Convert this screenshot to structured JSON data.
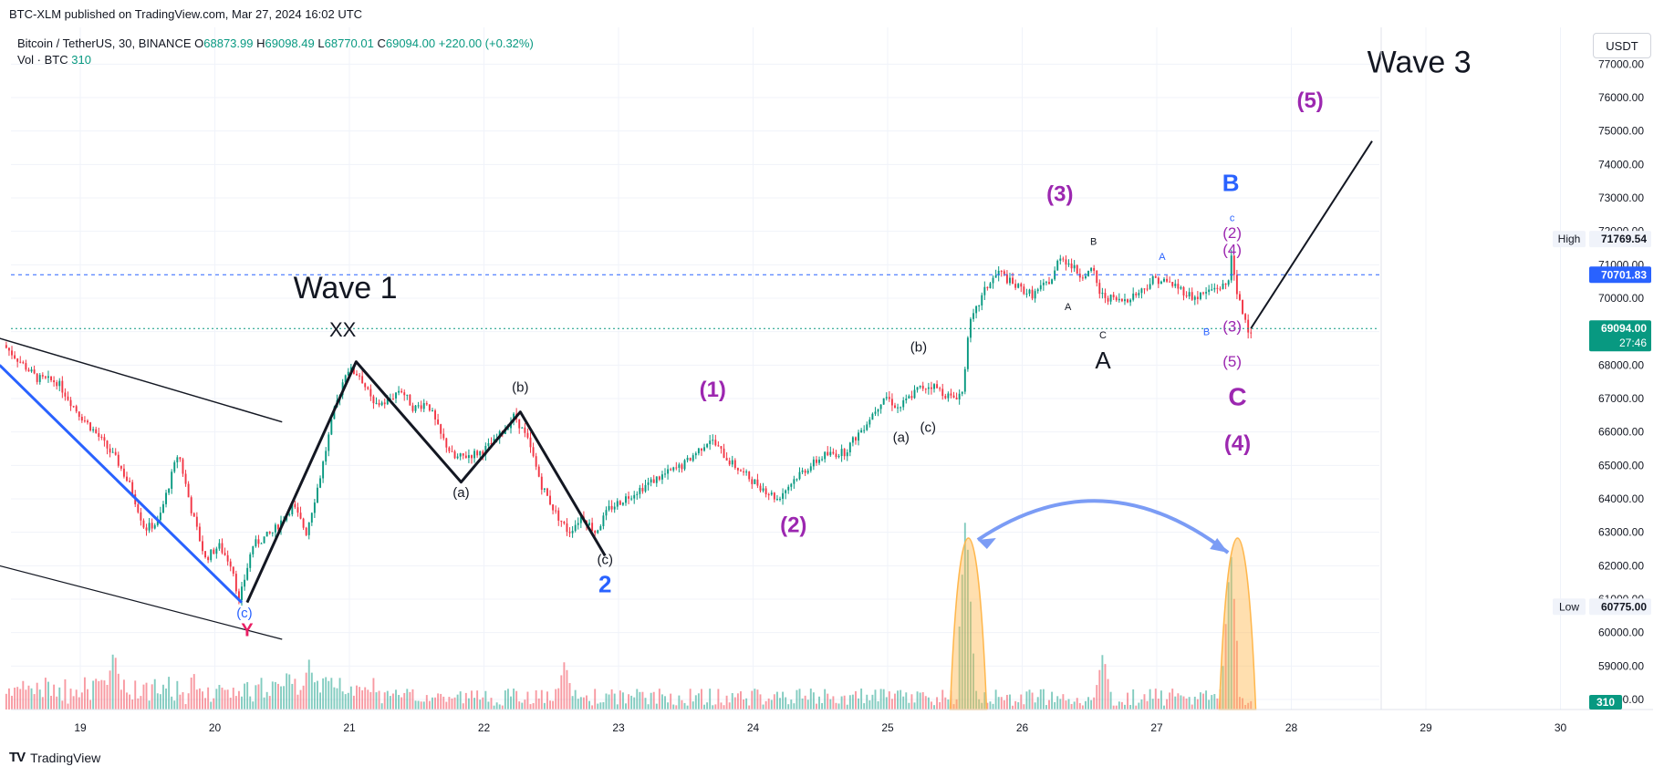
{
  "header": {
    "published": "BTC-XLM published on TradingView.com, Mar 27, 2024 16:02 UTC",
    "symbol": "Bitcoin / TetherUS, 30, BINANCE",
    "o_label": "O",
    "o_value": "68873.99",
    "h_label": "H",
    "h_value": "69098.49",
    "l_label": "L",
    "l_value": "68770.01",
    "c_label": "C",
    "c_value": "69094.00",
    "change": "+220.00 (+0.32%)",
    "vol_label": "Vol · BTC",
    "vol_value": "310",
    "currency": "USDT"
  },
  "footer": {
    "logo_text": "TradingView"
  },
  "colors": {
    "up": "#089981",
    "down": "#f23645",
    "purple": "#9c27b0",
    "blue": "#2962ff",
    "pink": "#e91e63",
    "orange_zone": "#ffb74d",
    "arrow": "#7b9cf5"
  },
  "chart_data": {
    "type": "candlestick",
    "x_ticks": [
      "19",
      "20",
      "21",
      "22",
      "23",
      "24",
      "25",
      "26",
      "27",
      "28",
      "29",
      "30"
    ],
    "y_ticks": [
      "77000.00",
      "76000.00",
      "75000.00",
      "74000.00",
      "73000.00",
      "72000.00",
      "71000.00",
      "70000.00",
      "69000.00",
      "68000.00",
      "67000.00",
      "66000.00",
      "65000.00",
      "64000.00",
      "63000.00",
      "62000.00",
      "61000.00",
      "60000.00",
      "59000.00",
      "58000.00"
    ],
    "ylim": [
      57700,
      78100
    ],
    "price_labels": [
      {
        "label": "High",
        "value": "71769.54",
        "price": 71769.54,
        "style": "plain"
      },
      {
        "label": "",
        "value": "70701.83",
        "price": 70701.83,
        "style": "blue"
      },
      {
        "label": "",
        "value": "69094.00",
        "sub": "27:46",
        "price": 69094,
        "style": "green"
      },
      {
        "label": "Low",
        "value": "60775.00",
        "price": 60775,
        "style": "plain"
      }
    ],
    "volume_label": "310",
    "price_path": [
      [
        18.45,
        68600
      ],
      [
        18.55,
        68200
      ],
      [
        18.7,
        67600
      ],
      [
        18.85,
        67500
      ],
      [
        19.0,
        66600
      ],
      [
        19.15,
        65900
      ],
      [
        19.3,
        65100
      ],
      [
        19.4,
        64300
      ],
      [
        19.5,
        63100
      ],
      [
        19.6,
        63300
      ],
      [
        19.7,
        64700
      ],
      [
        19.75,
        65400
      ],
      [
        19.85,
        63600
      ],
      [
        19.95,
        62200
      ],
      [
        20.05,
        62600
      ],
      [
        20.15,
        62000
      ],
      [
        20.2,
        60900
      ],
      [
        20.3,
        62600
      ],
      [
        20.45,
        63000
      ],
      [
        20.6,
        63800
      ],
      [
        20.7,
        63000
      ],
      [
        20.8,
        64600
      ],
      [
        20.9,
        66500
      ],
      [
        21.0,
        67900
      ],
      [
        21.1,
        67700
      ],
      [
        21.2,
        66800
      ],
      [
        21.3,
        66900
      ],
      [
        21.4,
        67300
      ],
      [
        21.5,
        66700
      ],
      [
        21.6,
        66900
      ],
      [
        21.7,
        65900
      ],
      [
        21.8,
        65200
      ],
      [
        21.9,
        65300
      ],
      [
        22.0,
        65400
      ],
      [
        22.1,
        65700
      ],
      [
        22.25,
        66500
      ],
      [
        22.35,
        65700
      ],
      [
        22.45,
        64400
      ],
      [
        22.55,
        63600
      ],
      [
        22.65,
        63000
      ],
      [
        22.75,
        63500
      ],
      [
        22.85,
        63000
      ],
      [
        22.95,
        63700
      ],
      [
        23.1,
        64100
      ],
      [
        23.3,
        64600
      ],
      [
        23.5,
        65000
      ],
      [
        23.7,
        65800
      ],
      [
        23.85,
        65100
      ],
      [
        24.0,
        64600
      ],
      [
        24.2,
        64000
      ],
      [
        24.35,
        64700
      ],
      [
        24.55,
        65300
      ],
      [
        24.7,
        65400
      ],
      [
        24.85,
        66200
      ],
      [
        25.0,
        67100
      ],
      [
        25.1,
        66700
      ],
      [
        25.25,
        67300
      ],
      [
        25.35,
        67400
      ],
      [
        25.5,
        67000
      ],
      [
        25.58,
        67200
      ],
      [
        25.62,
        69100
      ],
      [
        25.75,
        70300
      ],
      [
        25.85,
        70800
      ],
      [
        25.95,
        70400
      ],
      [
        26.1,
        70100
      ],
      [
        26.25,
        70600
      ],
      [
        26.3,
        71300
      ],
      [
        26.45,
        70700
      ],
      [
        26.55,
        70800
      ],
      [
        26.6,
        70100
      ],
      [
        26.75,
        69900
      ],
      [
        26.9,
        70200
      ],
      [
        27.0,
        70600
      ],
      [
        27.15,
        70400
      ],
      [
        27.3,
        70000
      ],
      [
        27.45,
        70300
      ],
      [
        27.55,
        70400
      ],
      [
        27.58,
        71600
      ],
      [
        27.6,
        70300
      ],
      [
        27.65,
        69700
      ],
      [
        27.7,
        69094
      ]
    ],
    "volume_spikes": [
      [
        19.25,
        160
      ],
      [
        20.7,
        130
      ],
      [
        22.6,
        130
      ],
      [
        25.58,
        520
      ],
      [
        26.6,
        150
      ],
      [
        27.55,
        420
      ]
    ],
    "waves": [
      {
        "id": "wave1-label",
        "text": "Wave 1",
        "x": 20.97,
        "p": 70000,
        "color": "#131722",
        "size": 34
      },
      {
        "id": "wave3-label",
        "text": "Wave 3",
        "x": 28.95,
        "p": 76750,
        "color": "#131722",
        "size": 34
      },
      {
        "id": "xx-label",
        "text": "XX",
        "x": 20.95,
        "p": 68850,
        "color": "#131722",
        "size": 22
      },
      {
        "id": "y-label",
        "text": "Y",
        "x": 20.24,
        "p": 59900,
        "color": "#e91e63",
        "size": 20
      },
      {
        "id": "c-blue-low",
        "text": "(c)",
        "x": 20.22,
        "p": 60450,
        "color": "#2962ff",
        "size": 15
      },
      {
        "id": "a-paren-1",
        "text": "(a)",
        "x": 21.83,
        "p": 64050,
        "color": "#131722",
        "size": 15
      },
      {
        "id": "b-paren-1",
        "text": "(b)",
        "x": 22.27,
        "p": 67200,
        "color": "#131722",
        "size": 15
      },
      {
        "id": "c-paren-1",
        "text": "(c)",
        "x": 22.9,
        "p": 62050,
        "color": "#131722",
        "size": 15
      },
      {
        "id": "wave2-blue",
        "text": "2",
        "x": 22.9,
        "p": 61200,
        "color": "#2962ff",
        "size": 26
      },
      {
        "id": "wave1-purple",
        "text": "(1)",
        "x": 23.7,
        "p": 67050,
        "color": "#9c27b0",
        "size": 24
      },
      {
        "id": "wave2-purple",
        "text": "(2)",
        "x": 24.3,
        "p": 63000,
        "color": "#9c27b0",
        "size": 24
      },
      {
        "id": "a-paren-2",
        "text": "(a)",
        "x": 25.1,
        "p": 65700,
        "color": "#131722",
        "size": 15
      },
      {
        "id": "c-paren-2",
        "text": "(c)",
        "x": 25.3,
        "p": 66000,
        "color": "#131722",
        "size": 15
      },
      {
        "id": "b-paren-2",
        "text": "(b)",
        "x": 25.23,
        "p": 68400,
        "color": "#131722",
        "size": 15
      },
      {
        "id": "wave3-purple",
        "text": "(3)",
        "x": 26.28,
        "p": 72900,
        "color": "#9c27b0",
        "size": 24
      },
      {
        "id": "b-small-black",
        "text": "B",
        "x": 26.53,
        "p": 71600,
        "color": "#131722",
        "size": 11
      },
      {
        "id": "a-small-black",
        "text": "A",
        "x": 26.34,
        "p": 69650,
        "color": "#131722",
        "size": 11
      },
      {
        "id": "c-small-black",
        "text": "C",
        "x": 26.6,
        "p": 68800,
        "color": "#131722",
        "size": 11
      },
      {
        "id": "a-big-black",
        "text": "A",
        "x": 26.6,
        "p": 67900,
        "color": "#131722",
        "size": 26
      },
      {
        "id": "a-small-blue",
        "text": "A",
        "x": 27.04,
        "p": 71150,
        "color": "#2962ff",
        "size": 11
      },
      {
        "id": "b-small-blue",
        "text": "B",
        "x": 27.37,
        "p": 68900,
        "color": "#2962ff",
        "size": 11
      },
      {
        "id": "b-big-blue",
        "text": "B",
        "x": 27.55,
        "p": 73200,
        "color": "#2962ff",
        "size": 26
      },
      {
        "id": "c-small-blue",
        "text": "c",
        "x": 27.56,
        "p": 72300,
        "color": "#2962ff",
        "size": 11
      },
      {
        "id": "wave2-small-purple",
        "text": "(2)",
        "x": 27.56,
        "p": 71800,
        "color": "#9c27b0",
        "size": 17
      },
      {
        "id": "wave4-small-purple",
        "text": "(4)",
        "x": 27.56,
        "p": 71300,
        "color": "#9c27b0",
        "size": 17
      },
      {
        "id": "wave3-small-purple",
        "text": "(3)",
        "x": 27.56,
        "p": 69000,
        "color": "#9c27b0",
        "size": 17
      },
      {
        "id": "wave5-small-purple",
        "text": "(5)",
        "x": 27.56,
        "p": 67950,
        "color": "#9c27b0",
        "size": 17
      },
      {
        "id": "c-big-purple",
        "text": "C",
        "x": 27.6,
        "p": 66800,
        "color": "#9c27b0",
        "size": 28
      },
      {
        "id": "wave4-purple",
        "text": "(4)",
        "x": 27.6,
        "p": 65450,
        "color": "#9c27b0",
        "size": 24
      },
      {
        "id": "wave5-purple",
        "text": "(5)",
        "x": 28.14,
        "p": 75700,
        "color": "#9c27b0",
        "size": 24
      }
    ],
    "lines": [
      {
        "id": "wedge-upper",
        "color": "#131722",
        "width": 1.5,
        "pts": [
          [
            18.4,
            68800
          ],
          [
            20.5,
            66300
          ]
        ]
      },
      {
        "id": "wedge-lower",
        "color": "#131722",
        "width": 1.2,
        "pts": [
          [
            18.4,
            62000
          ],
          [
            20.5,
            59800
          ]
        ]
      },
      {
        "id": "blue-trendline",
        "color": "#2962ff",
        "width": 3,
        "pts": [
          [
            18.4,
            68000
          ],
          [
            20.2,
            60900
          ]
        ]
      },
      {
        "id": "wxy-path",
        "color": "#131722",
        "width": 3,
        "pts": [
          [
            20.24,
            60900
          ],
          [
            21.05,
            68100
          ],
          [
            21.83,
            64500
          ],
          [
            22.27,
            66600
          ],
          [
            22.9,
            62300
          ]
        ]
      },
      {
        "id": "wave3-projection",
        "color": "#131722",
        "width": 2,
        "pts": [
          [
            27.7,
            69100
          ],
          [
            28.6,
            74700
          ]
        ]
      }
    ]
  }
}
